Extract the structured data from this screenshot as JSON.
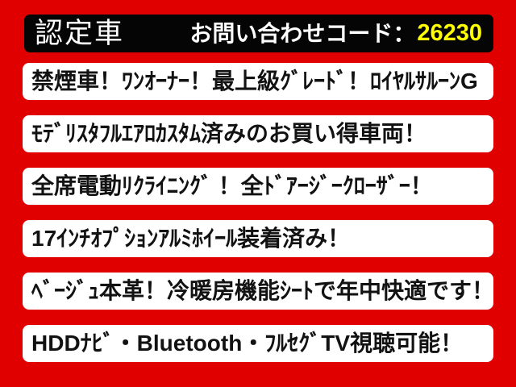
{
  "page": {
    "background_color": "#e10000",
    "header_bar_color": "#050505",
    "banner_color": "#ffffff",
    "text_color": "#121212",
    "code_color": "#ffff00"
  },
  "header": {
    "badge_label": "認定車",
    "inquiry_label": "お問い合わせコード：",
    "inquiry_code": "26230"
  },
  "features": [
    {
      "text": "禁煙車！ﾜﾝｵｰﾅｰ！最上級ｸﾞﾚｰﾄﾞ！ﾛｲﾔﾙｻﾙｰﾝG"
    },
    {
      "text": "ﾓﾃﾞﾘｽﾀﾌﾙｴｱﾛｶｽﾀﾑ済みのお買い得車両！"
    },
    {
      "text": "全席電動ﾘｸﾗｲﾆﾝｸﾞ ！全ﾄﾞｱｰｼﾞｰｸﾛｰｻﾞｰ！"
    },
    {
      "text": "17ｲﾝﾁｵﾌﾟｼｮﾝｱﾙﾐﾎｲｰﾙ装着済み！"
    },
    {
      "text": "ﾍﾞｰｼﾞｭ本革！冷暖房機能ｼｰﾄで年中快適です！"
    },
    {
      "text": "HDDﾅﾋﾞ・Bluetooth・ﾌﾙｾｸﾞTV視聴可能！"
    }
  ]
}
